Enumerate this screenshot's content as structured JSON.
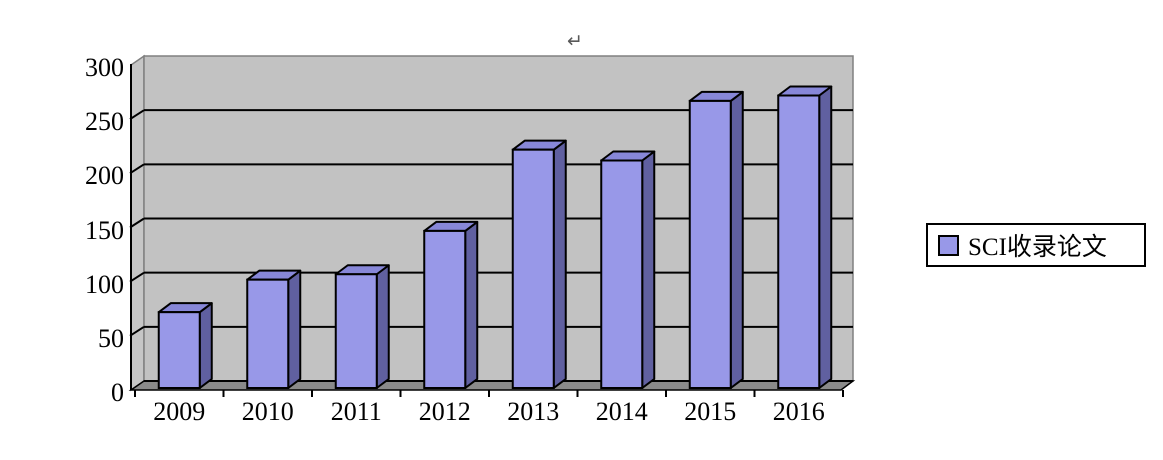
{
  "editor": {
    "return_mark": "↵"
  },
  "legend": {
    "label": "SCI收录论文",
    "marker_color": "#9898E8"
  },
  "chart_data": {
    "type": "bar",
    "style": "3d-column",
    "title": "",
    "xlabel": "",
    "ylabel": "",
    "categories": [
      "2009",
      "2010",
      "2011",
      "2012",
      "2013",
      "2014",
      "2015",
      "2016"
    ],
    "series": [
      {
        "name": "SCI收录论文",
        "values": [
          70,
          100,
          105,
          145,
          220,
          210,
          265,
          270
        ]
      }
    ],
    "ylim": [
      0,
      300
    ],
    "yticks": [
      0,
      50,
      100,
      150,
      200,
      250,
      300
    ],
    "grid": true,
    "legend_position": "right",
    "colors": {
      "bar_front": "#9898E8",
      "bar_top": "#8787D8",
      "bar_side": "#6060A0",
      "back_wall": "#C2C2C2",
      "left_wall": "#C6C6C6",
      "floor": "#8A8A8A",
      "gridline": "#000000",
      "wall_edge": "#808080",
      "background": "#FFFFFF"
    }
  }
}
